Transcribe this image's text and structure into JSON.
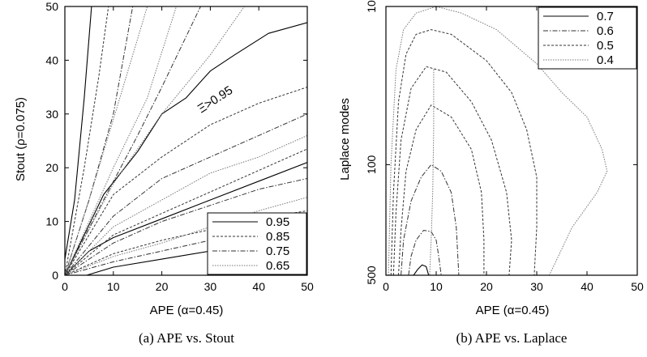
{
  "chart_data": [
    {
      "type": "line",
      "title": "",
      "xlabel": "APE (α=0.45)",
      "ylabel": "Stout (ρ=0.075)",
      "xlim": [
        0,
        50
      ],
      "ylim": [
        0,
        50
      ],
      "xticks": [
        0,
        10,
        20,
        30,
        40,
        50
      ],
      "yticks": [
        0,
        10,
        20,
        30,
        40,
        50
      ],
      "grid": false,
      "legend_position": "bottom-right",
      "annotation": "Ξ>0.95",
      "caption": "(a)  APE vs. Stout",
      "legend": [
        {
          "label": "0.95",
          "style": "solid",
          "color": "#000000"
        },
        {
          "label": "0.85",
          "style": "dashed",
          "color": "#333333"
        },
        {
          "label": "0.75",
          "style": "dash-dot",
          "color": "#444444"
        },
        {
          "label": "0.65",
          "style": "dotted",
          "color": "#777777"
        }
      ],
      "series": [
        {
          "level": "0.95",
          "style": "solid",
          "points": [
            [
              0,
              0
            ],
            [
              8,
              15
            ],
            [
              15,
              23
            ],
            [
              20,
              30
            ],
            [
              25,
              33
            ],
            [
              30,
              38
            ],
            [
              35,
              41
            ],
            [
              42,
              45
            ],
            [
              50,
              47
            ]
          ]
        },
        {
          "level": "0.95",
          "style": "solid",
          "points": [
            [
              0,
              0
            ],
            [
              5,
              4.5
            ],
            [
              10,
              7
            ],
            [
              20,
              10.5
            ],
            [
              30,
              14
            ],
            [
              40,
              17.5
            ],
            [
              50,
              21
            ]
          ]
        },
        {
          "level": "0.95",
          "style": "solid",
          "points": [
            [
              4.5,
              0
            ],
            [
              10,
              1.5
            ],
            [
              20,
              3
            ],
            [
              30,
              4.5
            ],
            [
              40,
              5.8
            ],
            [
              50,
              6.8
            ]
          ]
        },
        {
          "level": "0.95",
          "style": "solid",
          "points": [
            [
              0,
              3
            ],
            [
              2,
              14
            ],
            [
              4,
              33
            ],
            [
              5.5,
              50
            ]
          ]
        },
        {
          "level": "0.85",
          "style": "dashed",
          "points": [
            [
              0,
              0
            ],
            [
              10,
              15
            ],
            [
              20,
              22
            ],
            [
              30,
              28
            ],
            [
              40,
              32
            ],
            [
              50,
              35
            ]
          ]
        },
        {
          "level": "0.85",
          "style": "dashed",
          "points": [
            [
              0,
              0
            ],
            [
              10,
              7.5
            ],
            [
              20,
              11.5
            ],
            [
              30,
              15.5
            ],
            [
              40,
              19.5
            ],
            [
              50,
              23.5
            ]
          ]
        },
        {
          "level": "0.85",
          "style": "dashed",
          "points": [
            [
              0,
              0
            ],
            [
              10,
              4
            ],
            [
              20,
              6.5
            ],
            [
              30,
              8.5
            ],
            [
              40,
              10.5
            ],
            [
              50,
              12
            ]
          ]
        },
        {
          "level": "0.85",
          "style": "dashed",
          "points": [
            [
              0,
              0
            ],
            [
              4,
              20
            ],
            [
              7,
              37
            ],
            [
              9,
              50
            ]
          ]
        },
        {
          "level": "0.75",
          "style": "dash-dot",
          "points": [
            [
              0,
              0
            ],
            [
              10,
              11
            ],
            [
              20,
              18
            ],
            [
              30,
              22
            ],
            [
              40,
              26
            ],
            [
              50,
              30
            ]
          ]
        },
        {
          "level": "0.75",
          "style": "dash-dot",
          "points": [
            [
              0,
              0
            ],
            [
              10,
              6
            ],
            [
              20,
              10
            ],
            [
              30,
              13
            ],
            [
              40,
              16
            ],
            [
              50,
              18
            ]
          ]
        },
        {
          "level": "0.75",
          "style": "dash-dot",
          "points": [
            [
              0,
              0
            ],
            [
              10,
              2.5
            ],
            [
              20,
              4.5
            ],
            [
              30,
              6.5
            ],
            [
              40,
              8
            ],
            [
              50,
              9.5
            ]
          ]
        },
        {
          "level": "0.75",
          "style": "dash-dot",
          "points": [
            [
              0,
              0
            ],
            [
              5,
              14
            ],
            [
              10,
              30
            ],
            [
              14,
              50
            ]
          ]
        },
        {
          "level": "0.75",
          "style": "dash-dot",
          "points": [
            [
              0,
              0
            ],
            [
              8,
              14
            ],
            [
              15,
              26
            ],
            [
              20,
              35
            ],
            [
              28,
              50
            ]
          ]
        },
        {
          "level": "0.65",
          "style": "dotted",
          "points": [
            [
              0,
              0
            ],
            [
              10,
              9
            ],
            [
              20,
              14
            ],
            [
              30,
              19
            ],
            [
              40,
              22
            ],
            [
              50,
              26
            ]
          ]
        },
        {
          "level": "0.65",
          "style": "dotted",
          "points": [
            [
              0,
              0
            ],
            [
              10,
              3.5
            ],
            [
              20,
              6
            ],
            [
              30,
              9
            ],
            [
              40,
              12
            ],
            [
              50,
              14.5
            ]
          ]
        },
        {
          "level": "0.65",
          "style": "dotted",
          "points": [
            [
              0,
              0
            ],
            [
              6,
              17
            ],
            [
              12,
              35
            ],
            [
              17,
              50
            ]
          ]
        },
        {
          "level": "0.65",
          "style": "dotted",
          "points": [
            [
              0,
              0
            ],
            [
              10,
              20
            ],
            [
              17,
              33
            ],
            [
              23,
              50
            ]
          ]
        },
        {
          "level": "0.65",
          "style": "dotted",
          "points": [
            [
              0,
              0
            ],
            [
              10,
              17
            ],
            [
              20,
              30
            ],
            [
              30,
              41
            ],
            [
              37,
              50
            ]
          ]
        }
      ]
    },
    {
      "type": "line",
      "title": "",
      "xlabel": "APE (α=0.45)",
      "ylabel": "Laplace modes",
      "xlim": [
        0,
        50
      ],
      "ylim": [
        500,
        10
      ],
      "yscale": "log",
      "xticks": [
        0,
        10,
        20,
        30,
        40,
        50
      ],
      "yticks": [
        10,
        100,
        500
      ],
      "grid": false,
      "legend_position": "top-right",
      "caption": "(b)  APE vs. Laplace",
      "legend": [
        {
          "label": "0.7",
          "style": "solid",
          "color": "#000000"
        },
        {
          "label": "0.6",
          "style": "dash-dot",
          "color": "#333333"
        },
        {
          "label": "0.5",
          "style": "dashed",
          "color": "#333333"
        },
        {
          "label": "0.4",
          "style": "dotted",
          "color": "#777777"
        }
      ],
      "series": [
        {
          "level": "0.7",
          "style": "solid",
          "points": [
            [
              5.5,
              500
            ],
            [
              6.3,
              460
            ],
            [
              7.2,
              430
            ],
            [
              8,
              440
            ],
            [
              8.5,
              500
            ]
          ]
        },
        {
          "level": "0.6",
          "style": "dash-dot",
          "points": [
            [
              4.5,
              500
            ],
            [
              5,
              380
            ],
            [
              6,
              300
            ],
            [
              7.5,
              260
            ],
            [
              9,
              265
            ],
            [
              10,
              300
            ],
            [
              10.5,
              380
            ],
            [
              11,
              500
            ]
          ]
        },
        {
          "level": "0.6",
          "style": "dash-dot",
          "points": [
            [
              3,
              500
            ],
            [
              3.5,
              300
            ],
            [
              5,
              170
            ],
            [
              7,
              120
            ],
            [
              9,
              100
            ],
            [
              11,
              110
            ],
            [
              13,
              150
            ],
            [
              14,
              250
            ],
            [
              14.5,
              500
            ]
          ]
        },
        {
          "level": "0.5",
          "style": "dashed",
          "points": [
            [
              2.5,
              500
            ],
            [
              3,
              260
            ],
            [
              4,
              110
            ],
            [
              6,
              60
            ],
            [
              9,
              42
            ],
            [
              13,
              50
            ],
            [
              17,
              80
            ],
            [
              19,
              150
            ],
            [
              19.5,
              300
            ],
            [
              19.5,
              500
            ]
          ]
        },
        {
          "level": "0.5",
          "style": "dashed",
          "points": [
            [
              1.5,
              500
            ],
            [
              2,
              200
            ],
            [
              3,
              70
            ],
            [
              5,
              33
            ],
            [
              8,
              24
            ],
            [
              12,
              26
            ],
            [
              17,
              40
            ],
            [
              21,
              70
            ],
            [
              24,
              150
            ],
            [
              25,
              300
            ],
            [
              24.5,
              500
            ]
          ]
        },
        {
          "level": "0.5",
          "style": "dashed",
          "points": [
            [
              1,
              500
            ],
            [
              1.5,
              150
            ],
            [
              2.5,
              40
            ],
            [
              4,
              20
            ],
            [
              6,
              15
            ],
            [
              9,
              14
            ],
            [
              13,
              15
            ],
            [
              20,
              22
            ],
            [
              25,
              35
            ],
            [
              28,
              60
            ],
            [
              30,
              120
            ],
            [
              30,
              250
            ],
            [
              29.5,
              500
            ]
          ]
        },
        {
          "level": "0.4",
          "style": "dotted",
          "points": [
            [
              0.5,
              500
            ],
            [
              1,
              100
            ],
            [
              2,
              25
            ],
            [
              3.5,
              14
            ],
            [
              6,
              11
            ],
            [
              10,
              10
            ],
            [
              15,
              11
            ],
            [
              22,
              14
            ],
            [
              30,
              23
            ],
            [
              35,
              35
            ],
            [
              40,
              50
            ],
            [
              43,
              80
            ],
            [
              44,
              110
            ],
            [
              42,
              150
            ],
            [
              37,
              250
            ],
            [
              32.5,
              500
            ]
          ]
        },
        {
          "level": "0.4",
          "style": "dotted",
          "points": [
            [
              9.5,
              25
            ],
            [
              9.5,
              60
            ],
            [
              9.3,
              150
            ],
            [
              9,
              300
            ],
            [
              8.7,
              500
            ]
          ]
        }
      ]
    }
  ]
}
